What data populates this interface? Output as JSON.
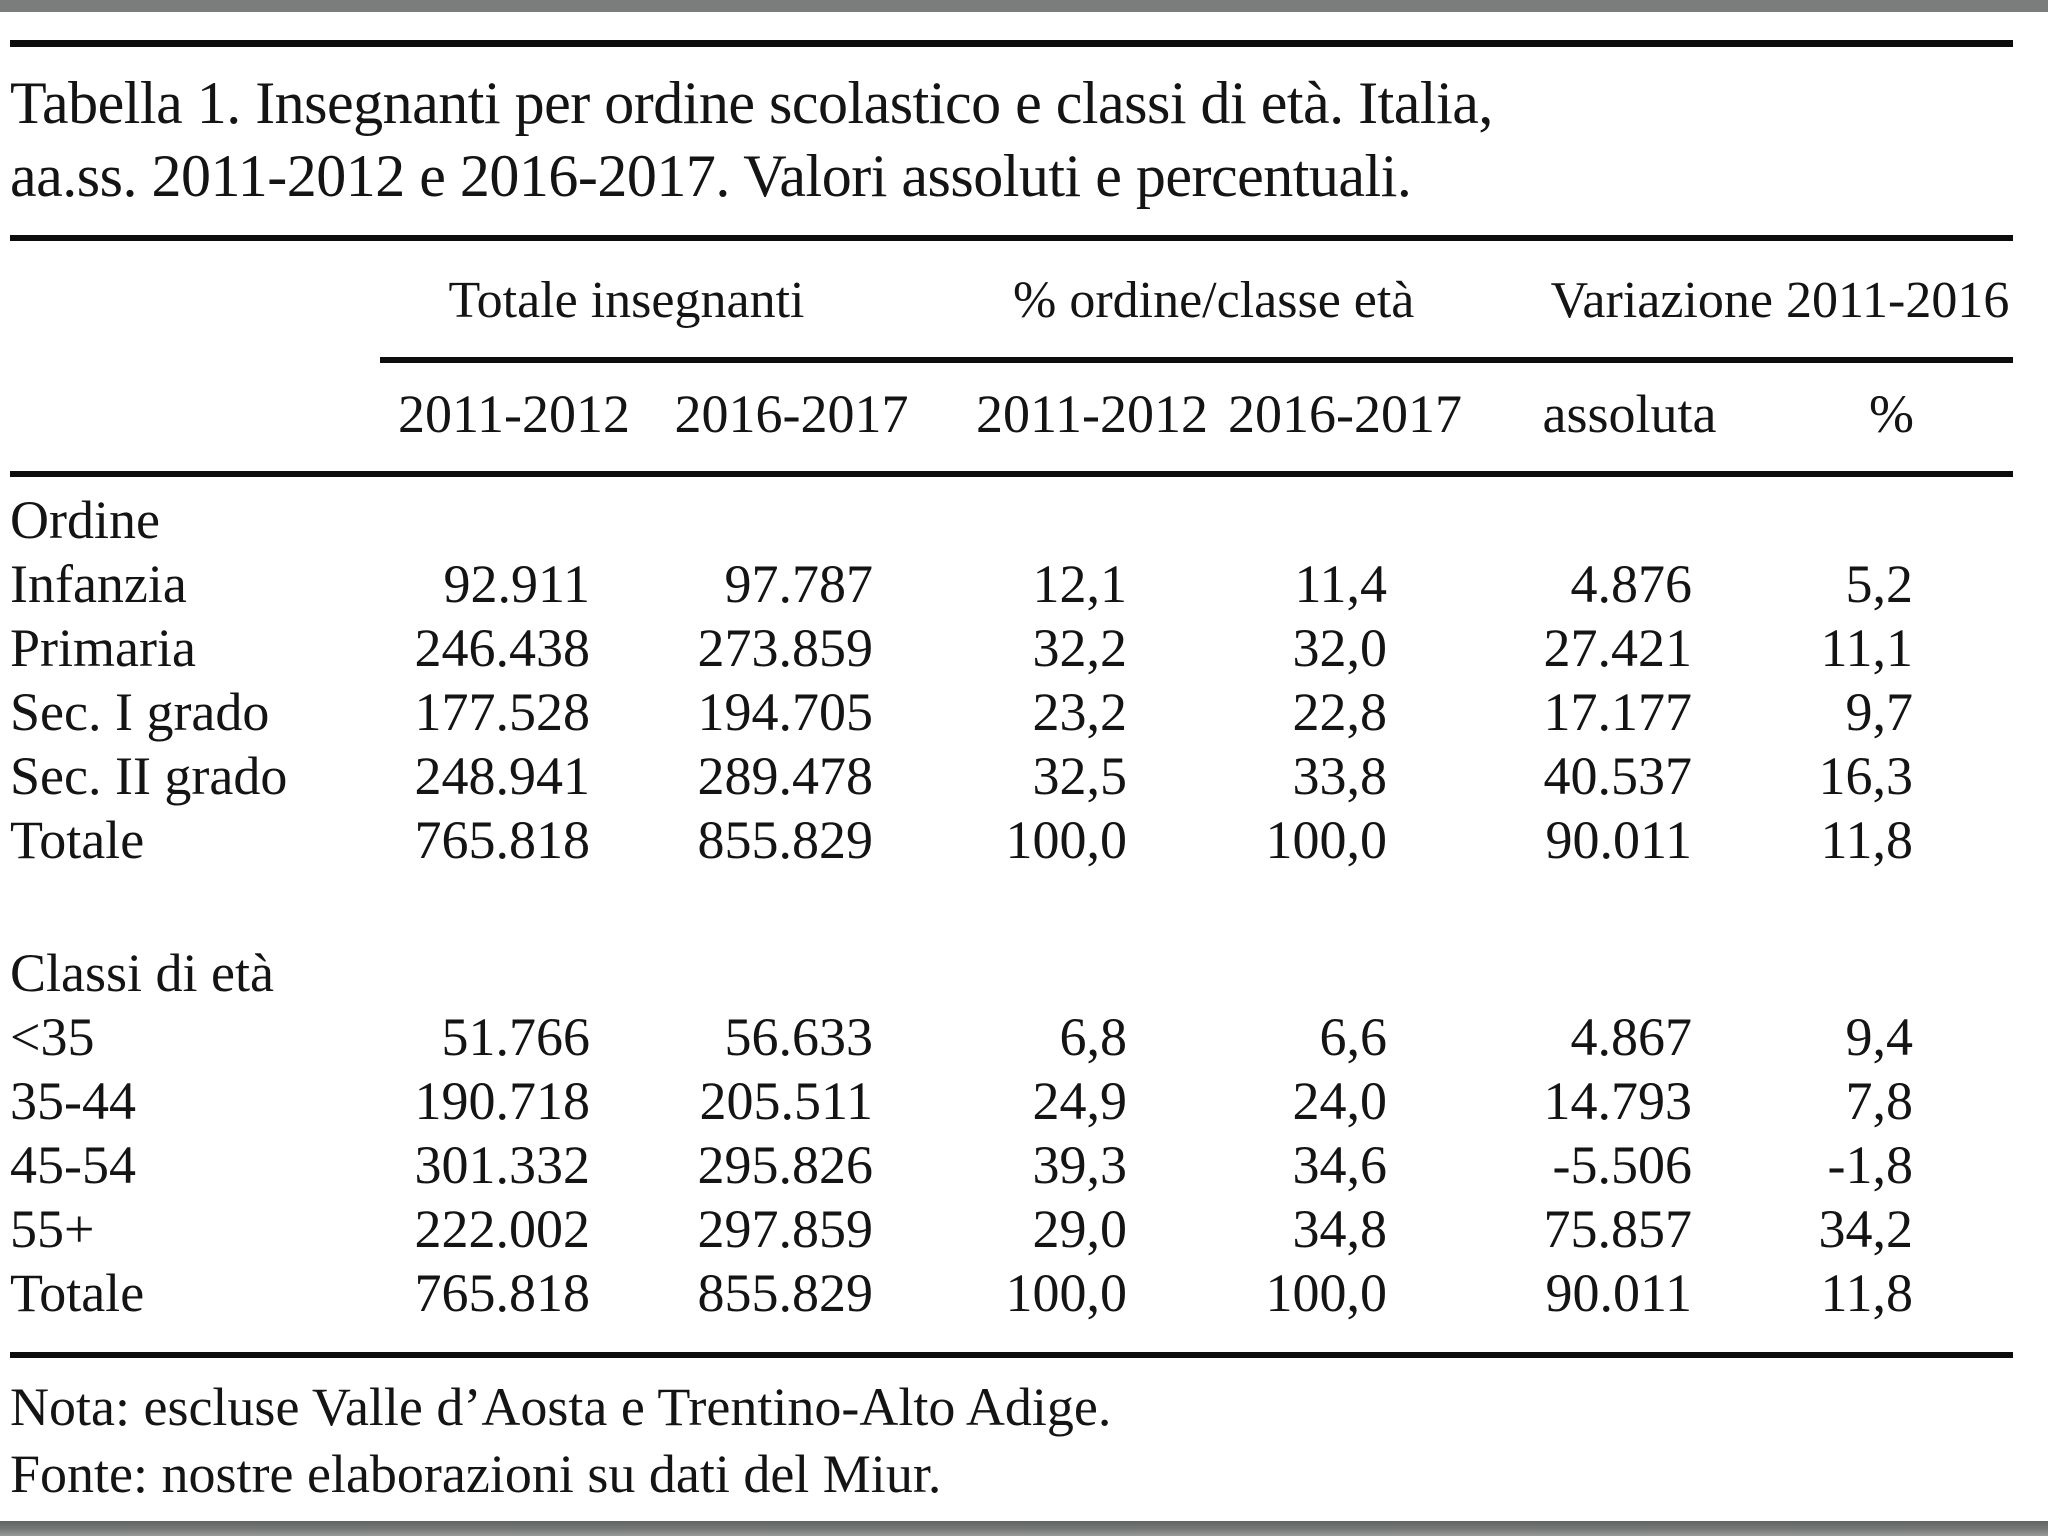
{
  "title": {
    "lines": [
      "Tabella 1. Insegnanti per ordine scolastico e classi di età. Italia,",
      "aa.ss. 2011-2012 e 2016-2017. Valori assoluti e percentuali."
    ]
  },
  "table": {
    "group_headers": [
      "Totale insegnanti",
      "% ordine/classe età",
      "Variazione 2011-2016"
    ],
    "sub_headers": [
      "2011-2012",
      "2016-2017",
      "2011-2012",
      "2016-2017",
      "assoluta",
      "%"
    ],
    "sections": [
      {
        "header": "Ordine",
        "rows": [
          {
            "label": "Infanzia",
            "values": [
              "92.911",
              "97.787",
              "12,1",
              "11,4",
              "4.876",
              "5,2"
            ]
          },
          {
            "label": "Primaria",
            "values": [
              "246.438",
              "273.859",
              "32,2",
              "32,0",
              "27.421",
              "11,1"
            ]
          },
          {
            "label": "Sec. I grado",
            "values": [
              "177.528",
              "194.705",
              "23,2",
              "22,8",
              "17.177",
              "9,7"
            ]
          },
          {
            "label": "Sec. II grado",
            "values": [
              "248.941",
              "289.478",
              "32,5",
              "33,8",
              "40.537",
              "16,3"
            ]
          },
          {
            "label": "Totale",
            "values": [
              "765.818",
              "855.829",
              "100,0",
              "100,0",
              "90.011",
              "11,8"
            ]
          }
        ]
      },
      {
        "header": "Classi di età",
        "rows": [
          {
            "label": "<35",
            "values": [
              "51.766",
              "56.633",
              "6,8",
              "6,6",
              "4.867",
              "9,4"
            ]
          },
          {
            "label": "35-44",
            "values": [
              "190.718",
              "205.511",
              "24,9",
              "24,0",
              "14.793",
              "7,8"
            ]
          },
          {
            "label": "45-54",
            "values": [
              "301.332",
              "295.826",
              "39,3",
              "34,6",
              "-5.506",
              "-1,8"
            ]
          },
          {
            "label": "55+",
            "values": [
              "222.002",
              "297.859",
              "29,0",
              "34,8",
              "75.857",
              "34,2"
            ]
          },
          {
            "label": "Totale",
            "values": [
              "765.818",
              "855.829",
              "100,0",
              "100,0",
              "90.011",
              "11,8"
            ]
          }
        ]
      }
    ]
  },
  "notes": [
    "Nota: escluse Valle d’Aosta e Trentino-Alto Adige.",
    "Fonte: nostre elaborazioni su dati del Miur."
  ],
  "colors": {
    "page_background": "#ffffff",
    "text": "#141414",
    "rule": "#0d0d0d",
    "chrome_bar": "#7b7d7c"
  }
}
